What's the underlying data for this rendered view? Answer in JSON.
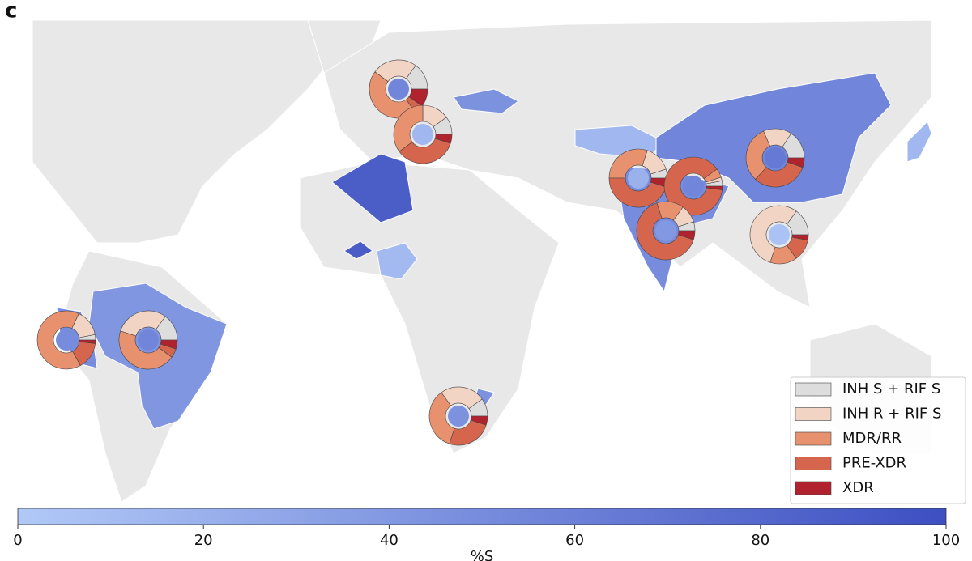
{
  "panel_label": "c",
  "region_values": [
    45,
    88,
    88,
    12,
    42,
    50,
    45,
    15,
    55,
    50,
    15
  ],
  "donuts": [
    {
      "values": [
        15,
        25,
        45,
        5,
        10
      ],
      "center_value": 55
    },
    {
      "values": [
        10,
        15,
        35,
        35,
        5
      ],
      "center_value": 15
    },
    {
      "values": [
        5,
        15,
        30,
        45,
        5
      ],
      "center_value": 20
    },
    {
      "values": [
        3,
        2,
        5,
        88,
        2
      ],
      "center_value": 55
    },
    {
      "values": [
        5,
        10,
        15,
        65,
        5
      ],
      "center_value": 40
    },
    {
      "values": [
        15,
        15,
        30,
        30,
        5
      ],
      "center_value": 65
    },
    {
      "values": [
        15,
        55,
        15,
        12,
        3
      ],
      "center_value": 5
    },
    {
      "values": [
        3,
        15,
        65,
        15,
        2
      ],
      "center_value": 50
    },
    {
      "values": [
        15,
        30,
        45,
        5,
        5
      ],
      "center_value": 55
    },
    {
      "values": [
        10,
        25,
        35,
        25,
        5
      ],
      "center_value": 45
    }
  ],
  "legend": {
    "items": [
      {
        "name": "INH S + RIF S",
        "color": "#dddddd"
      },
      {
        "name": "INH R + RIF S",
        "color": "#f2d4c4"
      },
      {
        "name": "MDR/RR",
        "color": "#e8916f"
      },
      {
        "name": "PRE-XDR",
        "color": "#d6654e"
      },
      {
        "name": "XDR",
        "color": "#b0232e"
      }
    ]
  },
  "colorbar": {
    "label": "%S",
    "clim": [
      0,
      100
    ],
    "ticks": [
      0,
      20,
      40,
      60,
      80,
      100
    ],
    "colors": [
      "#b1c9f7",
      "#3d4fc2"
    ]
  }
}
